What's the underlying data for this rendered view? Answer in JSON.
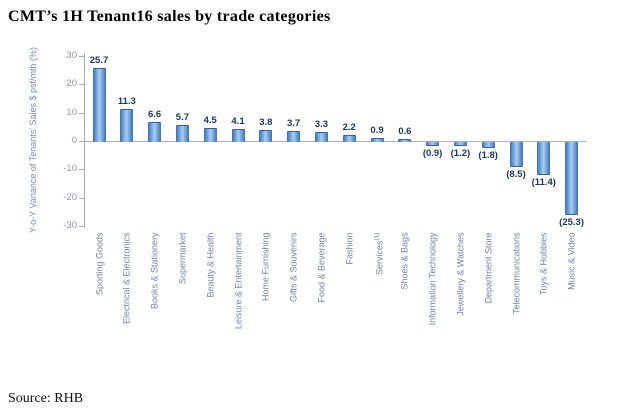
{
  "title": "CMT’s 1H Tenant16 sales by trade categories",
  "source": "Source: RHB",
  "chart_data": {
    "type": "bar",
    "title": "CMT’s 1H Tenant16 sales by trade categories",
    "ylabel": "Y-o-Y Variance of Tenants' Sales $ psf/mth (%)",
    "xlabel": "",
    "ylim": [
      -30,
      30
    ],
    "yticks": [
      30,
      20,
      10,
      0,
      -10,
      -20,
      -30
    ],
    "grid": false,
    "legend": "none",
    "bar_color": "#5f97d3",
    "bar_edge_color": "#35639c",
    "value_label_color": "#17375e",
    "axis_text_color": "#7b8ab4",
    "categories": [
      "Sporting Goods",
      "Electrical & Electronics",
      "Books & Stationery",
      "Supermarket",
      "Beauty & Health",
      "Leisure & Entertainment",
      "Home Furnishing",
      "Gifts & Souvenirs",
      "Food & Beverage",
      "Fashion",
      "Services",
      "Shoes & Bags",
      "Information Technology",
      "Jewellery & Watches",
      "Department Store",
      "Telecommunications",
      "Toys & Hobbies",
      "Music & Video"
    ],
    "values": [
      25.7,
      11.3,
      6.6,
      5.7,
      4.5,
      4.1,
      3.8,
      3.7,
      3.3,
      2.2,
      0.9,
      0.6,
      -0.9,
      -1.2,
      -1.8,
      -8.5,
      -11.4,
      -25.3
    ],
    "labels": [
      "25.7",
      "11.3",
      "6.6",
      "5.7",
      "4.5",
      "4.1",
      "3.8",
      "3.7",
      "3.3",
      "2.2",
      "0.9",
      "0.6",
      "(0.9)",
      "(1.2)",
      "(1.8)",
      "(8.5)",
      "(11.4)",
      "(25.3)"
    ],
    "footnote": {
      "category_index": 10,
      "marker": "(1)"
    }
  }
}
